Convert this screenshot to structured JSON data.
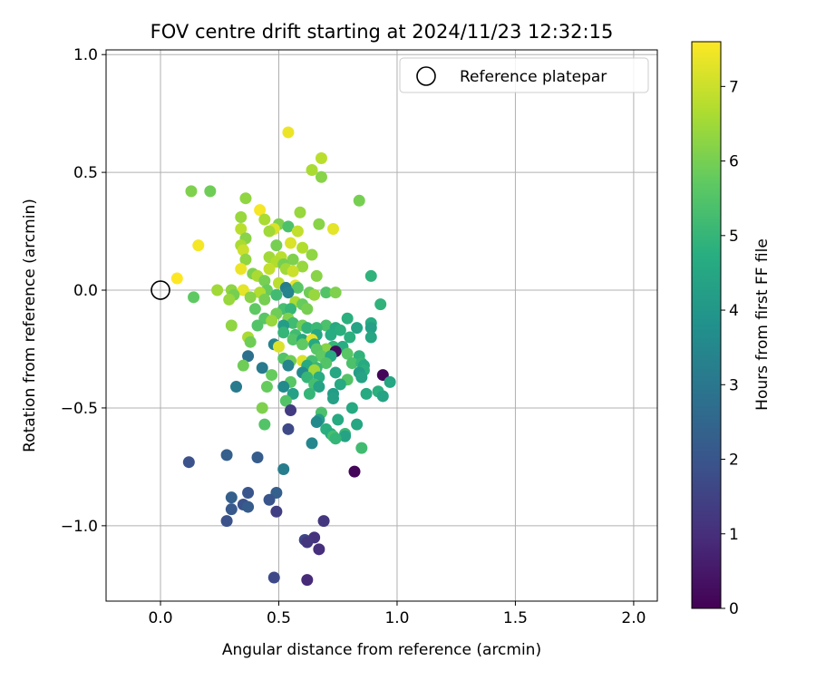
{
  "chart_data": {
    "type": "scatter",
    "title": "FOV centre drift starting at 2024/11/23 12:32:15",
    "xlabel": "Angular distance from reference (arcmin)",
    "ylabel": "Rotation from reference (arcmin)",
    "xlim": [
      -0.23,
      2.1
    ],
    "ylim": [
      -1.32,
      1.02
    ],
    "xticks": [
      0.0,
      0.5,
      1.0,
      1.5,
      2.0
    ],
    "xtick_labels": [
      "0.0",
      "0.5",
      "1.0",
      "1.5",
      "2.0"
    ],
    "yticks": [
      0.5,
      0.0,
      -0.5,
      -1.0,
      1.0
    ],
    "ytick_labels": [
      "0.5",
      "0.0",
      "−0.5",
      "−1.0",
      "1.0"
    ],
    "grid": true,
    "legend": {
      "placement": "top-right",
      "entries": [
        "Reference platepar"
      ]
    },
    "reference_point": {
      "x": 0.0,
      "y": 0.0,
      "label": "Reference platepar"
    },
    "colorbar": {
      "label": "Hours from first FF file",
      "range": [
        0,
        7.6
      ],
      "ticks": [
        0,
        1,
        2,
        3,
        4,
        5,
        6,
        7
      ],
      "tick_labels": [
        "0",
        "1",
        "2",
        "3",
        "4",
        "5",
        "6",
        "7"
      ],
      "colormap": "viridis"
    },
    "points": [
      {
        "x": 0.54,
        "y": 0.67,
        "h": 7.4
      },
      {
        "x": 0.68,
        "y": 0.56,
        "h": 6.8
      },
      {
        "x": 0.64,
        "y": 0.51,
        "h": 6.6
      },
      {
        "x": 0.68,
        "y": 0.48,
        "h": 6.2
      },
      {
        "x": 0.13,
        "y": 0.42,
        "h": 6.1
      },
      {
        "x": 0.21,
        "y": 0.42,
        "h": 5.9
      },
      {
        "x": 0.36,
        "y": 0.39,
        "h": 6.3
      },
      {
        "x": 0.84,
        "y": 0.38,
        "h": 6.0
      },
      {
        "x": 0.42,
        "y": 0.34,
        "h": 7.5
      },
      {
        "x": 0.59,
        "y": 0.33,
        "h": 6.4
      },
      {
        "x": 0.44,
        "y": 0.3,
        "h": 6.6
      },
      {
        "x": 0.34,
        "y": 0.31,
        "h": 6.4
      },
      {
        "x": 0.5,
        "y": 0.28,
        "h": 6.1
      },
      {
        "x": 0.54,
        "y": 0.27,
        "h": 5.4
      },
      {
        "x": 0.67,
        "y": 0.28,
        "h": 6.2
      },
      {
        "x": 0.73,
        "y": 0.26,
        "h": 7.3
      },
      {
        "x": 0.34,
        "y": 0.26,
        "h": 6.8
      },
      {
        "x": 0.48,
        "y": 0.26,
        "h": 7.2
      },
      {
        "x": 0.58,
        "y": 0.25,
        "h": 6.9
      },
      {
        "x": 0.46,
        "y": 0.25,
        "h": 6.5
      },
      {
        "x": 0.36,
        "y": 0.22,
        "h": 6.2
      },
      {
        "x": 0.34,
        "y": 0.19,
        "h": 6.6
      },
      {
        "x": 0.16,
        "y": 0.19,
        "h": 7.5
      },
      {
        "x": 0.55,
        "y": 0.2,
        "h": 7.2
      },
      {
        "x": 0.6,
        "y": 0.18,
        "h": 6.7
      },
      {
        "x": 0.49,
        "y": 0.19,
        "h": 6.0
      },
      {
        "x": 0.35,
        "y": 0.17,
        "h": 7.0
      },
      {
        "x": 0.64,
        "y": 0.15,
        "h": 6.3
      },
      {
        "x": 0.46,
        "y": 0.14,
        "h": 6.5
      },
      {
        "x": 0.51,
        "y": 0.14,
        "h": 6.8
      },
      {
        "x": 0.56,
        "y": 0.13,
        "h": 6.1
      },
      {
        "x": 0.36,
        "y": 0.13,
        "h": 6.3
      },
      {
        "x": 0.49,
        "y": 0.12,
        "h": 6.7
      },
      {
        "x": 0.52,
        "y": 0.11,
        "h": 6.0
      },
      {
        "x": 0.6,
        "y": 0.1,
        "h": 6.4
      },
      {
        "x": 0.34,
        "y": 0.09,
        "h": 7.4
      },
      {
        "x": 0.46,
        "y": 0.09,
        "h": 6.9
      },
      {
        "x": 0.53,
        "y": 0.09,
        "h": 6.5
      },
      {
        "x": 0.56,
        "y": 0.08,
        "h": 7.0
      },
      {
        "x": 0.39,
        "y": 0.07,
        "h": 6.1
      },
      {
        "x": 0.07,
        "y": 0.05,
        "h": 7.6
      },
      {
        "x": 0.41,
        "y": 0.06,
        "h": 6.6
      },
      {
        "x": 0.66,
        "y": 0.06,
        "h": 6.2
      },
      {
        "x": 0.89,
        "y": 0.06,
        "h": 4.9
      },
      {
        "x": 0.44,
        "y": 0.04,
        "h": 6.0
      },
      {
        "x": 0.5,
        "y": 0.03,
        "h": 6.8
      },
      {
        "x": 0.57,
        "y": 0.02,
        "h": 7.3
      },
      {
        "x": 0.53,
        "y": 0.01,
        "h": 3.2
      },
      {
        "x": 0.58,
        "y": 0.01,
        "h": 5.6
      },
      {
        "x": 0.45,
        "y": 0.0,
        "h": 5.8
      },
      {
        "x": 0.24,
        "y": 0.0,
        "h": 6.5
      },
      {
        "x": 0.3,
        "y": 0.0,
        "h": 6.3
      },
      {
        "x": 0.35,
        "y": 0.0,
        "h": 7.3
      },
      {
        "x": 0.42,
        "y": -0.01,
        "h": 6.7
      },
      {
        "x": 0.54,
        "y": -0.01,
        "h": 3.4
      },
      {
        "x": 0.63,
        "y": -0.01,
        "h": 5.9
      },
      {
        "x": 0.7,
        "y": -0.01,
        "h": 5.5
      },
      {
        "x": 0.74,
        "y": -0.01,
        "h": 6.1
      },
      {
        "x": 0.65,
        "y": -0.02,
        "h": 6.4
      },
      {
        "x": 0.49,
        "y": -0.02,
        "h": 5.2
      },
      {
        "x": 0.31,
        "y": -0.02,
        "h": 6.0
      },
      {
        "x": 0.38,
        "y": -0.03,
        "h": 6.2
      },
      {
        "x": 0.14,
        "y": -0.03,
        "h": 5.7
      },
      {
        "x": 0.29,
        "y": -0.04,
        "h": 6.4
      },
      {
        "x": 0.44,
        "y": -0.04,
        "h": 6.0
      },
      {
        "x": 0.57,
        "y": -0.05,
        "h": 6.6
      },
      {
        "x": 0.93,
        "y": -0.06,
        "h": 4.9
      },
      {
        "x": 0.6,
        "y": -0.06,
        "h": 5.8
      },
      {
        "x": 0.4,
        "y": -0.08,
        "h": 5.7
      },
      {
        "x": 0.52,
        "y": -0.08,
        "h": 5.3
      },
      {
        "x": 0.55,
        "y": -0.08,
        "h": 5.0
      },
      {
        "x": 0.62,
        "y": -0.08,
        "h": 6.0
      },
      {
        "x": 0.49,
        "y": -0.1,
        "h": 5.9
      },
      {
        "x": 0.44,
        "y": -0.12,
        "h": 5.6
      },
      {
        "x": 0.54,
        "y": -0.12,
        "h": 6.1
      },
      {
        "x": 0.79,
        "y": -0.12,
        "h": 4.8
      },
      {
        "x": 0.47,
        "y": -0.13,
        "h": 6.4
      },
      {
        "x": 0.56,
        "y": -0.14,
        "h": 5.2
      },
      {
        "x": 0.89,
        "y": -0.14,
        "h": 4.7
      },
      {
        "x": 0.3,
        "y": -0.15,
        "h": 6.3
      },
      {
        "x": 0.41,
        "y": -0.15,
        "h": 5.5
      },
      {
        "x": 0.52,
        "y": -0.15,
        "h": 4.2
      },
      {
        "x": 0.6,
        "y": -0.15,
        "h": 5.9
      },
      {
        "x": 0.7,
        "y": -0.15,
        "h": 5.4
      },
      {
        "x": 0.74,
        "y": -0.16,
        "h": 4.6
      },
      {
        "x": 0.83,
        "y": -0.16,
        "h": 4.4
      },
      {
        "x": 0.89,
        "y": -0.16,
        "h": 4.3
      },
      {
        "x": 0.62,
        "y": -0.16,
        "h": 4.9
      },
      {
        "x": 0.66,
        "y": -0.16,
        "h": 5.1
      },
      {
        "x": 0.76,
        "y": -0.17,
        "h": 4.8
      },
      {
        "x": 0.52,
        "y": -0.18,
        "h": 5.0
      },
      {
        "x": 0.57,
        "y": -0.19,
        "h": 5.2
      },
      {
        "x": 0.66,
        "y": -0.19,
        "h": 4.5
      },
      {
        "x": 0.72,
        "y": -0.19,
        "h": 4.7
      },
      {
        "x": 0.37,
        "y": -0.2,
        "h": 6.6
      },
      {
        "x": 0.8,
        "y": -0.2,
        "h": 4.8
      },
      {
        "x": 0.89,
        "y": -0.2,
        "h": 4.5
      },
      {
        "x": 0.56,
        "y": -0.21,
        "h": 5.5
      },
      {
        "x": 0.6,
        "y": -0.21,
        "h": 4.5
      },
      {
        "x": 0.64,
        "y": -0.21,
        "h": 7.3
      },
      {
        "x": 0.38,
        "y": -0.22,
        "h": 5.9
      },
      {
        "x": 0.48,
        "y": -0.23,
        "h": 3.4
      },
      {
        "x": 0.6,
        "y": -0.23,
        "h": 5.7
      },
      {
        "x": 0.65,
        "y": -0.23,
        "h": 4.6
      },
      {
        "x": 0.73,
        "y": -0.24,
        "h": 5.0
      },
      {
        "x": 0.77,
        "y": -0.24,
        "h": 4.7
      },
      {
        "x": 0.5,
        "y": -0.24,
        "h": 7.2
      },
      {
        "x": 0.7,
        "y": -0.25,
        "h": 6.2
      },
      {
        "x": 0.66,
        "y": -0.25,
        "h": 5.6
      },
      {
        "x": 0.74,
        "y": -0.26,
        "h": 0.2
      },
      {
        "x": 0.79,
        "y": -0.27,
        "h": 5.6
      },
      {
        "x": 0.84,
        "y": -0.28,
        "h": 4.9
      },
      {
        "x": 0.37,
        "y": -0.28,
        "h": 2.8
      },
      {
        "x": 0.68,
        "y": -0.28,
        "h": 5.7
      },
      {
        "x": 0.72,
        "y": -0.28,
        "h": 4.6
      },
      {
        "x": 0.52,
        "y": -0.29,
        "h": 5.5
      },
      {
        "x": 0.6,
        "y": -0.3,
        "h": 7.2
      },
      {
        "x": 0.55,
        "y": -0.3,
        "h": 5.9
      },
      {
        "x": 0.64,
        "y": -0.3,
        "h": 5.3
      },
      {
        "x": 0.81,
        "y": -0.31,
        "h": 5.4
      },
      {
        "x": 0.85,
        "y": -0.31,
        "h": 5.0
      },
      {
        "x": 0.86,
        "y": -0.32,
        "h": 4.6
      },
      {
        "x": 0.7,
        "y": -0.31,
        "h": 5.5
      },
      {
        "x": 0.35,
        "y": -0.32,
        "h": 5.9
      },
      {
        "x": 0.43,
        "y": -0.33,
        "h": 3.1
      },
      {
        "x": 0.54,
        "y": -0.32,
        "h": 3.4
      },
      {
        "x": 0.62,
        "y": -0.32,
        "h": 4.6
      },
      {
        "x": 0.66,
        "y": -0.33,
        "h": 5.1
      },
      {
        "x": 0.65,
        "y": -0.34,
        "h": 6.5
      },
      {
        "x": 0.86,
        "y": -0.34,
        "h": 4.8
      },
      {
        "x": 0.6,
        "y": -0.35,
        "h": 3.6
      },
      {
        "x": 0.74,
        "y": -0.35,
        "h": 4.5
      },
      {
        "x": 0.84,
        "y": -0.35,
        "h": 4.2
      },
      {
        "x": 0.94,
        "y": -0.36,
        "h": 0.1
      },
      {
        "x": 0.47,
        "y": -0.36,
        "h": 5.8
      },
      {
        "x": 0.62,
        "y": -0.37,
        "h": 5.0
      },
      {
        "x": 0.67,
        "y": -0.37,
        "h": 4.7
      },
      {
        "x": 0.85,
        "y": -0.37,
        "h": 4.4
      },
      {
        "x": 0.79,
        "y": -0.38,
        "h": 5.5
      },
      {
        "x": 0.55,
        "y": -0.39,
        "h": 5.6
      },
      {
        "x": 0.97,
        "y": -0.39,
        "h": 4.5
      },
      {
        "x": 0.65,
        "y": -0.4,
        "h": 5.3
      },
      {
        "x": 0.76,
        "y": -0.4,
        "h": 4.6
      },
      {
        "x": 0.45,
        "y": -0.41,
        "h": 5.8
      },
      {
        "x": 0.52,
        "y": -0.41,
        "h": 3.6
      },
      {
        "x": 0.32,
        "y": -0.41,
        "h": 3.1
      },
      {
        "x": 0.67,
        "y": -0.41,
        "h": 4.4
      },
      {
        "x": 0.92,
        "y": -0.43,
        "h": 4.8
      },
      {
        "x": 0.87,
        "y": -0.44,
        "h": 4.6
      },
      {
        "x": 0.73,
        "y": -0.44,
        "h": 4.2
      },
      {
        "x": 0.56,
        "y": -0.44,
        "h": 4.3
      },
      {
        "x": 0.63,
        "y": -0.44,
        "h": 5.0
      },
      {
        "x": 0.94,
        "y": -0.45,
        "h": 4.4
      },
      {
        "x": 0.73,
        "y": -0.46,
        "h": 4.3
      },
      {
        "x": 0.53,
        "y": -0.47,
        "h": 5.5
      },
      {
        "x": 0.43,
        "y": -0.5,
        "h": 6.1
      },
      {
        "x": 0.81,
        "y": -0.5,
        "h": 4.6
      },
      {
        "x": 0.55,
        "y": -0.51,
        "h": 1.3
      },
      {
        "x": 0.68,
        "y": -0.52,
        "h": 5.4
      },
      {
        "x": 0.67,
        "y": -0.55,
        "h": 4.2
      },
      {
        "x": 0.75,
        "y": -0.55,
        "h": 4.6
      },
      {
        "x": 0.44,
        "y": -0.57,
        "h": 5.5
      },
      {
        "x": 0.66,
        "y": -0.56,
        "h": 3.6
      },
      {
        "x": 0.83,
        "y": -0.57,
        "h": 4.5
      },
      {
        "x": 0.54,
        "y": -0.59,
        "h": 1.7
      },
      {
        "x": 0.7,
        "y": -0.59,
        "h": 4.8
      },
      {
        "x": 0.72,
        "y": -0.61,
        "h": 4.7
      },
      {
        "x": 0.78,
        "y": -0.61,
        "h": 5.1
      },
      {
        "x": 0.73,
        "y": -0.62,
        "h": 5.3
      },
      {
        "x": 0.78,
        "y": -0.62,
        "h": 4.4
      },
      {
        "x": 0.74,
        "y": -0.63,
        "h": 5.0
      },
      {
        "x": 0.64,
        "y": -0.65,
        "h": 3.5
      },
      {
        "x": 0.85,
        "y": -0.67,
        "h": 5.2
      },
      {
        "x": 0.28,
        "y": -0.7,
        "h": 2.3
      },
      {
        "x": 0.41,
        "y": -0.71,
        "h": 2.2
      },
      {
        "x": 0.12,
        "y": -0.73,
        "h": 1.9
      },
      {
        "x": 0.52,
        "y": -0.76,
        "h": 3.2
      },
      {
        "x": 0.82,
        "y": -0.77,
        "h": 0.1
      },
      {
        "x": 0.3,
        "y": -0.88,
        "h": 2.3
      },
      {
        "x": 0.37,
        "y": -0.86,
        "h": 2.0
      },
      {
        "x": 0.49,
        "y": -0.86,
        "h": 2.3
      },
      {
        "x": 0.46,
        "y": -0.89,
        "h": 2.0
      },
      {
        "x": 0.35,
        "y": -0.91,
        "h": 1.9
      },
      {
        "x": 0.37,
        "y": -0.92,
        "h": 2.2
      },
      {
        "x": 0.3,
        "y": -0.93,
        "h": 2.1
      },
      {
        "x": 0.49,
        "y": -0.94,
        "h": 1.4
      },
      {
        "x": 0.28,
        "y": -0.98,
        "h": 1.9
      },
      {
        "x": 0.69,
        "y": -0.98,
        "h": 1.2
      },
      {
        "x": 0.65,
        "y": -1.05,
        "h": 1.1
      },
      {
        "x": 0.61,
        "y": -1.06,
        "h": 1.6
      },
      {
        "x": 0.62,
        "y": -1.07,
        "h": 1.2
      },
      {
        "x": 0.67,
        "y": -1.1,
        "h": 1.0
      },
      {
        "x": 0.48,
        "y": -1.22,
        "h": 1.7
      },
      {
        "x": 0.62,
        "y": -1.23,
        "h": 0.9
      }
    ]
  }
}
